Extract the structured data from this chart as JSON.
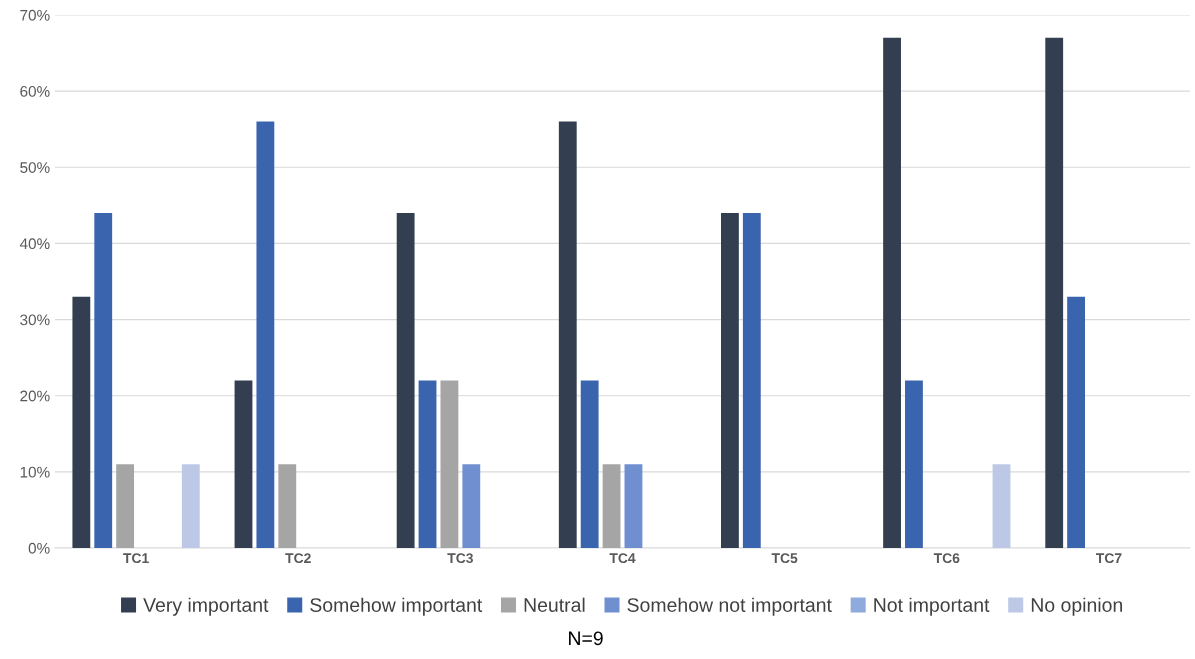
{
  "chart_data": {
    "type": "bar",
    "categories": [
      "TC1",
      "TC2",
      "TC3",
      "TC4",
      "TC5",
      "TC6",
      "TC7"
    ],
    "series": [
      {
        "name": "Very important",
        "color": "#333f50",
        "values": [
          33,
          22,
          44,
          56,
          44,
          67,
          67
        ]
      },
      {
        "name": "Somehow important",
        "color": "#3a64ad",
        "values": [
          44,
          56,
          22,
          22,
          44,
          22,
          33
        ]
      },
      {
        "name": "Neutral",
        "color": "#a5a5a5",
        "values": [
          11,
          11,
          22,
          11,
          0,
          0,
          0
        ]
      },
      {
        "name": "Somehow not important",
        "color": "#6f8fd0",
        "values": [
          0,
          0,
          11,
          11,
          0,
          0,
          0
        ]
      },
      {
        "name": "Not important",
        "color": "#8faadc",
        "values": [
          0,
          0,
          0,
          0,
          0,
          0,
          0
        ]
      },
      {
        "name": "No opinion",
        "color": "#bcc8e6",
        "values": [
          11,
          0,
          0,
          0,
          0,
          11,
          0
        ]
      }
    ],
    "ylim": [
      0,
      70
    ],
    "yticks": [
      {
        "value": 0,
        "label": "0%"
      },
      {
        "value": 10,
        "label": "10%"
      },
      {
        "value": 20,
        "label": "20%"
      },
      {
        "value": 30,
        "label": "30%"
      },
      {
        "value": 40,
        "label": "40%"
      },
      {
        "value": 50,
        "label": "50%"
      },
      {
        "value": 60,
        "label": "60%"
      },
      {
        "value": 70,
        "label": "70%"
      }
    ],
    "grid": "y",
    "legend": "bottom",
    "annotations": [
      "N=9"
    ]
  }
}
